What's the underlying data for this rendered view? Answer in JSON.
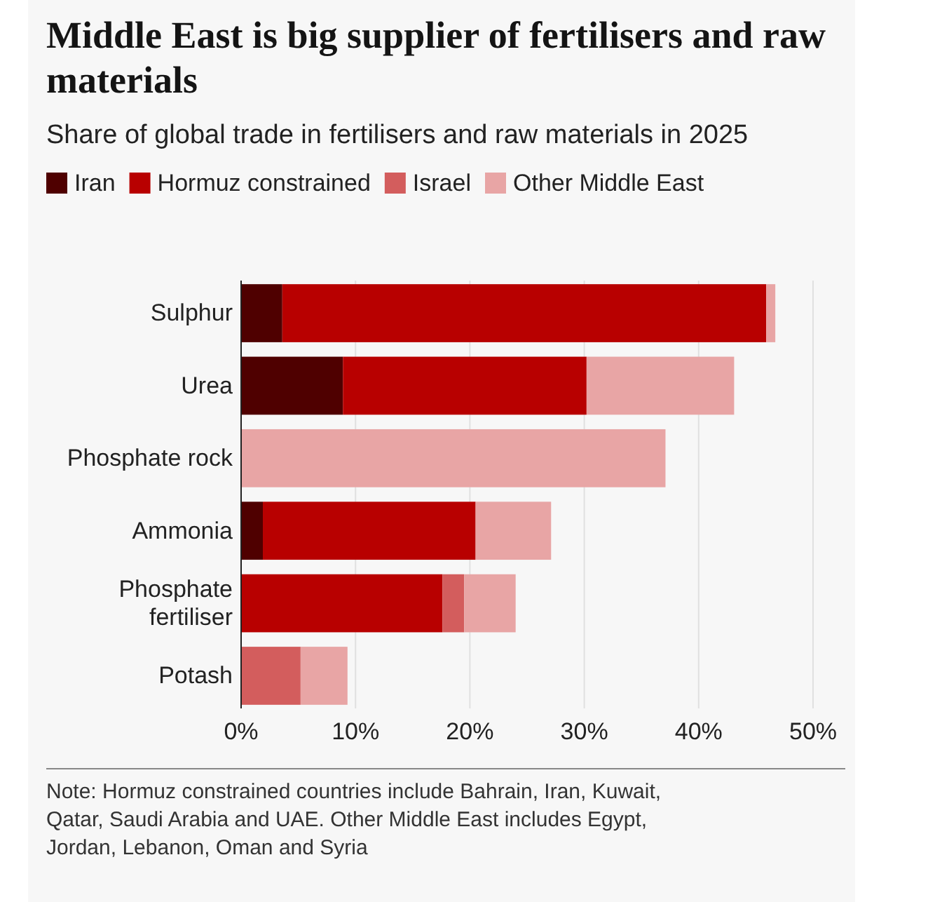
{
  "chart_data": {
    "type": "bar",
    "orientation": "horizontal",
    "stacked": true,
    "title": "Middle East is big supplier of fertilisers and raw materials",
    "subtitle": "Share of global trade in fertilisers and raw materials in 2025",
    "categories": [
      "Sulphur",
      "Urea",
      "Phosphate rock",
      "Ammonia",
      "Phosphate fertiliser",
      "Potash"
    ],
    "series": [
      {
        "name": "Iran",
        "color": "#4f0000",
        "values": [
          3.6,
          8.9,
          null,
          1.9,
          null,
          null
        ]
      },
      {
        "name": "Hormuz constrained",
        "color": "#b80000",
        "values": [
          42.3,
          21.3,
          null,
          18.6,
          17.6,
          null
        ]
      },
      {
        "name": "Israel",
        "color": "#d35d5d",
        "values": [
          null,
          null,
          null,
          null,
          1.9,
          5.2
        ]
      },
      {
        "name": "Other Middle East",
        "color": "#e8a5a5",
        "values": [
          0.8,
          12.9,
          37.1,
          6.6,
          4.5,
          4.1
        ]
      }
    ],
    "xlim": [
      0,
      50
    ],
    "xticks": [
      {
        "value": 0,
        "label": "0%"
      },
      {
        "value": 10,
        "label": "10%"
      },
      {
        "value": 20,
        "label": "20%"
      },
      {
        "value": 30,
        "label": "30%"
      },
      {
        "value": 40,
        "label": "40%"
      },
      {
        "value": 50,
        "label": "50%"
      }
    ],
    "grid": "x",
    "legend": "top",
    "annotations": [
      "Note: Hormuz constrained countries include Bahrain, Iran, Kuwait, Qatar, Saudi Arabia and UAE. Other Middle East includes Egypt, Jordan, Lebanon, Oman and Syria"
    ]
  }
}
